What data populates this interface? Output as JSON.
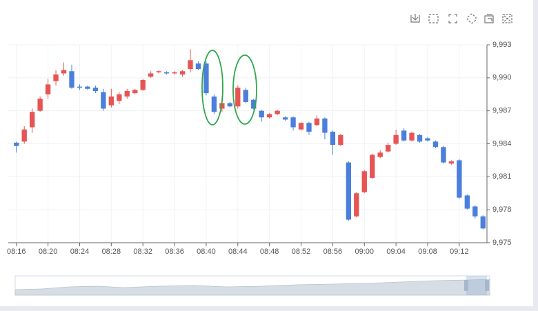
{
  "chart_data": {
    "type": "candlestick",
    "categories": [
      "08:16",
      null,
      null,
      null,
      "08:20",
      null,
      null,
      null,
      "08:24",
      null,
      null,
      null,
      "08:28",
      null,
      null,
      null,
      "08:32",
      null,
      null,
      null,
      "08:36",
      null,
      null,
      null,
      "08:40",
      null,
      null,
      null,
      "08:44",
      null,
      null,
      null,
      "08:48",
      null,
      null,
      null,
      "08:52",
      null,
      null,
      null,
      "08:56",
      null,
      null,
      null,
      "09:00",
      null,
      null,
      null,
      "09:04",
      null,
      null,
      null,
      "09:08",
      null,
      null,
      null,
      "09:12",
      null,
      null,
      null
    ],
    "open": [
      9984.1,
      9984.2,
      9985.5,
      9987.0,
      9988.5,
      9989.7,
      9990.4,
      9990.6,
      9989.2,
      9989.2,
      9989.1,
      9988.7,
      9987.5,
      9987.9,
      9988.3,
      9988.6,
      9988.9,
      9990.1,
      9990.5,
      9990.5,
      9990.4,
      9990.3,
      9990.8,
      9991.3,
      9991.3,
      9988.3,
      9987.2,
      9987.7,
      9987.4,
      9988.9,
      9988.0,
      9987.0,
      9986.4,
      9986.7,
      9986.4,
      9986.4,
      9985.3,
      9985.9,
      9985.7,
      9986.3,
      9985.1,
      9983.9,
      9982.3,
      9977.4,
      9979.6,
      9980.9,
      9982.8,
      9983.3,
      9984.0,
      9985.2,
      9984.3,
      9984.8,
      9984.5,
      9984.2,
      9983.7,
      9982.2,
      9982.5,
      9979.3,
      9978.3,
      9977.4
    ],
    "close": [
      9983.8,
      9985.3,
      9986.9,
      9988.1,
      9989.4,
      9990.3,
      9990.7,
      9989.1,
      9989.1,
      9989.0,
      9988.8,
      9987.2,
      9988.3,
      9988.5,
      9988.8,
      9988.9,
      9989.8,
      9990.4,
      9990.6,
      9990.4,
      9990.5,
      9990.6,
      9991.6,
      9990.8,
      9988.6,
      9986.9,
      9987.7,
      9987.4,
      9989.1,
      9987.8,
      9987.2,
      9986.4,
      9986.7,
      9987.0,
      9986.2,
      9985.5,
      9985.9,
      9985.1,
      9986.3,
      9985.0,
      9983.9,
      9984.8,
      9977.1,
      9979.5,
      9981.5,
      9983.0,
      9983.2,
      9983.9,
      9984.8,
      9984.3,
      9985.0,
      9984.2,
      9984.3,
      9983.7,
      9982.3,
      9982.4,
      9979.1,
      9978.1,
      9977.4,
      9976.3
    ],
    "high": [
      9984.2,
      9985.6,
      9987.2,
      9988.3,
      9989.9,
      9990.7,
      9991.4,
      9991.2,
      9989.4,
      9989.3,
      9989.3,
      9989.0,
      9989.0,
      9988.7,
      9989.0,
      9989.0,
      9989.9,
      9990.6,
      9990.7,
      9990.6,
      9990.6,
      9990.7,
      9992.6,
      9991.5,
      9991.5,
      9988.5,
      9988.3,
      9987.8,
      9989.3,
      9989.1,
      9988.1,
      9987.1,
      9986.8,
      9987.1,
      9986.5,
      9986.5,
      9986.0,
      9986.0,
      9986.6,
      9986.4,
      9985.2,
      9984.9,
      9982.4,
      9979.6,
      9981.6,
      9983.1,
      9983.4,
      9984.1,
      9985.3,
      9985.4,
      9985.1,
      9984.9,
      9984.6,
      9984.3,
      9983.8,
      9982.5,
      9982.6,
      9979.4,
      9978.4,
      9977.5
    ],
    "low": [
      9983.2,
      9984.0,
      9985.0,
      9986.9,
      9988.1,
      9989.3,
      9990.2,
      9989.0,
      9988.9,
      9988.9,
      9988.6,
      9987.0,
      9987.3,
      9987.6,
      9988.1,
      9988.5,
      9988.8,
      9990.0,
      9990.4,
      9990.3,
      9990.3,
      9990.1,
      9990.5,
      9990.7,
      9988.4,
      9986.7,
      9986.9,
      9987.3,
      9987.2,
      9987.7,
      9987.1,
      9986.0,
      9986.3,
      9986.6,
      9986.1,
      9985.2,
      9985.2,
      9984.8,
      9985.6,
      9984.4,
      9983.0,
      9983.8,
      9977.0,
      9977.3,
      9979.5,
      9980.8,
      9982.7,
      9983.2,
      9983.9,
      9984.2,
      9984.2,
      9984.1,
      9984.2,
      9983.6,
      9982.2,
      9982.1,
      9979.0,
      9978.0,
      9977.2,
      9976.2
    ],
    "up_color": "#e65454",
    "down_color": "#4a7fdc",
    "ylim": [
      9975,
      9993
    ],
    "yticks": [
      {
        "value": 9975,
        "label": "9,975"
      },
      {
        "value": 9978,
        "label": "9,978"
      },
      {
        "value": 9981,
        "label": "9,981"
      },
      {
        "value": 9984,
        "label": "9,984"
      },
      {
        "value": 9987,
        "label": "9,987"
      },
      {
        "value": 9990,
        "label": "9,990"
      },
      {
        "value": 9993,
        "label": "9,993"
      }
    ],
    "grid": true
  }
}
